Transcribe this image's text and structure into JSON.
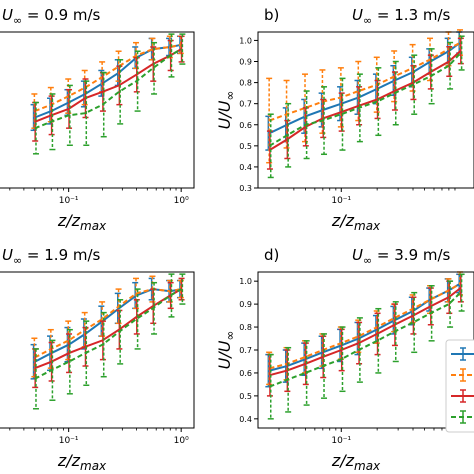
{
  "figure": {
    "x_label": "z/z",
    "x_label_sub": "max",
    "y_label": "U/U",
    "y_label_sub": "∞"
  },
  "colors": {
    "series_1": "#1f77b4",
    "series_2": "#ff7f0e",
    "series_3": "#d62728",
    "series_4": "#2ca02c"
  },
  "chart_data": [
    {
      "type": "line",
      "panel_label": "",
      "title": "U∞ = 0.9 m/s",
      "title_prefix": "U",
      "title_sub": "∞",
      "title_rest": " = 0.9 m/s",
      "x_scale": "log",
      "xlim": [
        0.02,
        1.3
      ],
      "ylim": [
        0.35,
        1.08
      ],
      "xtick_labels": [
        "10⁻¹",
        "10⁰"
      ],
      "xticks": [
        0.1,
        1
      ],
      "yticks": [],
      "ytick_labels": [],
      "legend": "none",
      "grid": false,
      "x": [
        0.05,
        0.07,
        0.1,
        0.14,
        0.2,
        0.28,
        0.4,
        0.56,
        0.8,
        1.0
      ],
      "series": [
        {
          "line": "solid",
          "values": [
            0.68,
            0.71,
            0.75,
            0.79,
            0.84,
            0.89,
            0.96,
            1.0,
            1.01,
            1.02
          ],
          "err": [
            0.06,
            0.06,
            0.06,
            0.06,
            0.06,
            0.06,
            0.05,
            0.05,
            0.04,
            0.04
          ]
        },
        {
          "line": "dashed",
          "values": [
            0.71,
            0.74,
            0.78,
            0.82,
            0.87,
            0.92,
            0.97,
            1.0,
            1.01,
            1.02
          ],
          "err": [
            0.08,
            0.08,
            0.08,
            0.08,
            0.07,
            0.07,
            0.06,
            0.05,
            0.05,
            0.04
          ]
        },
        {
          "line": "solid",
          "values": [
            0.66,
            0.69,
            0.72,
            0.77,
            0.8,
            0.83,
            0.88,
            0.93,
            0.97,
            1.0
          ],
          "err": [
            0.09,
            0.09,
            0.09,
            0.09,
            0.09,
            0.09,
            0.08,
            0.08,
            0.07,
            0.06
          ]
        },
        {
          "line": "dashed",
          "values": [
            0.63,
            0.66,
            0.69,
            0.7,
            0.74,
            0.8,
            0.85,
            0.91,
            0.97,
            1.0
          ],
          "err": [
            0.12,
            0.13,
            0.14,
            0.15,
            0.15,
            0.15,
            0.14,
            0.12,
            0.1,
            0.07
          ]
        }
      ]
    },
    {
      "type": "line",
      "panel_label": "b)",
      "title": "U∞ = 1.3 m/s",
      "title_prefix": "U",
      "title_sub": "∞",
      "title_rest": " = 1.3 m/s",
      "x_scale": "log",
      "xlim": [
        0.02,
        1.3
      ],
      "ylim": [
        0.3,
        1.04
      ],
      "xtick_labels": [
        "10⁻¹"
      ],
      "xticks": [
        0.1
      ],
      "yticks": [
        0.3,
        0.4,
        0.5,
        0.6,
        0.7,
        0.8,
        0.9,
        1.0
      ],
      "ytick_labels": [
        "0.3",
        "0.4",
        "0.5",
        "0.6",
        "0.7",
        "0.8",
        "0.9",
        "1.0"
      ],
      "legend": "none",
      "grid": false,
      "x": [
        0.025,
        0.035,
        0.05,
        0.07,
        0.1,
        0.14,
        0.2,
        0.28,
        0.4,
        0.56,
        0.8,
        1.0
      ],
      "series": [
        {
          "line": "solid",
          "values": [
            0.56,
            0.6,
            0.64,
            0.67,
            0.7,
            0.73,
            0.77,
            0.81,
            0.85,
            0.9,
            0.95,
            0.99
          ],
          "err": [
            0.08,
            0.08,
            0.08,
            0.08,
            0.08,
            0.08,
            0.07,
            0.07,
            0.07,
            0.06,
            0.06,
            0.05
          ]
        },
        {
          "line": "dashed",
          "values": [
            0.62,
            0.65,
            0.68,
            0.71,
            0.73,
            0.76,
            0.79,
            0.83,
            0.87,
            0.91,
            0.96,
            0.99
          ],
          "err": [
            0.2,
            0.16,
            0.16,
            0.15,
            0.14,
            0.14,
            0.13,
            0.12,
            0.11,
            0.1,
            0.08,
            0.06
          ]
        },
        {
          "line": "solid",
          "values": [
            0.48,
            0.53,
            0.59,
            0.63,
            0.66,
            0.69,
            0.72,
            0.76,
            0.8,
            0.85,
            0.9,
            0.95
          ],
          "err": [
            0.09,
            0.09,
            0.09,
            0.09,
            0.09,
            0.09,
            0.09,
            0.09,
            0.08,
            0.08,
            0.07,
            0.06
          ]
        },
        {
          "line": "dashed",
          "values": [
            0.5,
            0.55,
            0.6,
            0.62,
            0.65,
            0.68,
            0.71,
            0.75,
            0.79,
            0.83,
            0.88,
            0.94
          ],
          "err": [
            0.15,
            0.15,
            0.16,
            0.16,
            0.17,
            0.16,
            0.16,
            0.15,
            0.14,
            0.13,
            0.11,
            0.08
          ]
        }
      ]
    },
    {
      "type": "line",
      "panel_label": "",
      "title": "U∞ = 1.9 m/s",
      "title_prefix": "U",
      "title_sub": "∞",
      "title_rest": " = 1.9 m/s",
      "x_scale": "log",
      "xlim": [
        0.02,
        1.3
      ],
      "ylim": [
        0.35,
        1.08
      ],
      "xtick_labels": [
        "10⁻¹",
        "10⁰"
      ],
      "xticks": [
        0.1,
        1
      ],
      "yticks": [],
      "ytick_labels": [],
      "legend": "none",
      "grid": false,
      "x": [
        0.05,
        0.07,
        0.1,
        0.14,
        0.2,
        0.28,
        0.4,
        0.56,
        0.8,
        1.0
      ],
      "series": [
        {
          "line": "solid",
          "values": [
            0.66,
            0.7,
            0.74,
            0.79,
            0.85,
            0.91,
            0.97,
            1.0,
            0.99,
            1.0
          ],
          "err": [
            0.08,
            0.08,
            0.08,
            0.07,
            0.07,
            0.07,
            0.06,
            0.05,
            0.05,
            0.04
          ]
        },
        {
          "line": "dashed",
          "values": [
            0.68,
            0.72,
            0.76,
            0.81,
            0.86,
            0.92,
            0.98,
            1.0,
            0.99,
            1.0
          ],
          "err": [
            0.09,
            0.09,
            0.09,
            0.08,
            0.08,
            0.08,
            0.07,
            0.06,
            0.05,
            0.04
          ]
        },
        {
          "line": "solid",
          "values": [
            0.63,
            0.66,
            0.7,
            0.73,
            0.76,
            0.81,
            0.87,
            0.92,
            0.97,
            1.0
          ],
          "err": [
            0.09,
            0.09,
            0.09,
            0.09,
            0.09,
            0.09,
            0.08,
            0.08,
            0.06,
            0.05
          ]
        },
        {
          "line": "dashed",
          "values": [
            0.58,
            0.62,
            0.66,
            0.7,
            0.74,
            0.8,
            0.86,
            0.91,
            0.97,
            1.0
          ],
          "err": [
            0.14,
            0.14,
            0.15,
            0.15,
            0.15,
            0.15,
            0.14,
            0.12,
            0.1,
            0.07
          ]
        }
      ]
    },
    {
      "type": "line",
      "panel_label": "d)",
      "title": "U∞ = 3.9 m/s",
      "title_prefix": "U",
      "title_sub": "∞",
      "title_rest": " = 3.9 m/s",
      "x_scale": "log",
      "xlim": [
        0.02,
        1.3
      ],
      "ylim": [
        0.36,
        1.04
      ],
      "xtick_labels": [
        "10⁻¹"
      ],
      "xticks": [
        0.1
      ],
      "yticks": [
        0.4,
        0.5,
        0.6,
        0.7,
        0.8,
        0.9,
        1.0
      ],
      "ytick_labels": [
        "0.4",
        "0.5",
        "0.6",
        "0.7",
        "0.8",
        "0.9",
        "1.0"
      ],
      "legend": "right",
      "grid": false,
      "x": [
        0.025,
        0.035,
        0.05,
        0.07,
        0.1,
        0.14,
        0.2,
        0.28,
        0.4,
        0.56,
        0.8,
        1.0
      ],
      "series": [
        {
          "line": "solid",
          "values": [
            0.61,
            0.63,
            0.66,
            0.69,
            0.72,
            0.75,
            0.79,
            0.83,
            0.87,
            0.92,
            0.96,
            0.99
          ],
          "err": [
            0.07,
            0.07,
            0.07,
            0.07,
            0.07,
            0.07,
            0.06,
            0.06,
            0.06,
            0.05,
            0.05,
            0.04
          ]
        },
        {
          "line": "dashed",
          "values": [
            0.62,
            0.64,
            0.67,
            0.7,
            0.73,
            0.76,
            0.8,
            0.84,
            0.88,
            0.92,
            0.96,
            0.99
          ],
          "err": [
            0.07,
            0.07,
            0.07,
            0.07,
            0.07,
            0.07,
            0.07,
            0.06,
            0.06,
            0.06,
            0.05,
            0.05
          ]
        },
        {
          "line": "solid",
          "values": [
            0.59,
            0.61,
            0.64,
            0.67,
            0.7,
            0.73,
            0.77,
            0.81,
            0.85,
            0.89,
            0.93,
            0.97
          ],
          "err": [
            0.09,
            0.09,
            0.09,
            0.09,
            0.09,
            0.09,
            0.09,
            0.09,
            0.08,
            0.08,
            0.07,
            0.06
          ]
        },
        {
          "line": "dashed",
          "values": [
            0.54,
            0.57,
            0.6,
            0.63,
            0.66,
            0.7,
            0.74,
            0.78,
            0.82,
            0.86,
            0.9,
            0.95
          ],
          "err": [
            0.14,
            0.14,
            0.14,
            0.14,
            0.14,
            0.14,
            0.14,
            0.13,
            0.13,
            0.12,
            0.1,
            0.08
          ]
        }
      ]
    }
  ]
}
